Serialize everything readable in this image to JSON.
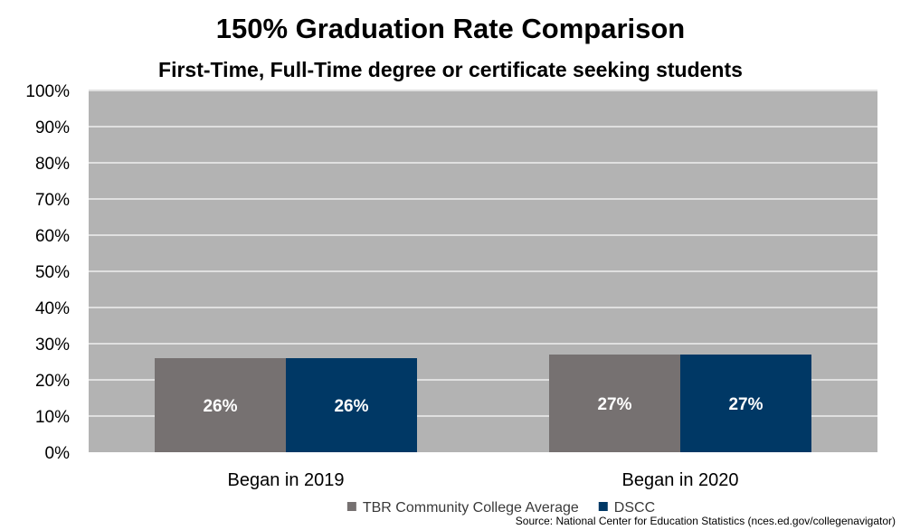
{
  "chart_data": {
    "type": "bar",
    "title": "150% Graduation Rate Comparison",
    "subtitle": "First-Time, Full-Time degree or certificate seeking students",
    "categories": [
      "Began in 2019",
      "Began in 2020"
    ],
    "series": [
      {
        "name": "TBR Community College Average",
        "color": "#767171",
        "values": [
          26,
          27
        ],
        "labels": [
          "26%",
          "27%"
        ]
      },
      {
        "name": "DSCC",
        "color": "#003865",
        "values": [
          26,
          27
        ],
        "labels": [
          "26%",
          "27%"
        ]
      }
    ],
    "ylim": [
      0,
      100
    ],
    "yticks": [
      0,
      10,
      20,
      30,
      40,
      50,
      60,
      70,
      80,
      90,
      100
    ],
    "ytick_labels": [
      "0%",
      "10%",
      "20%",
      "30%",
      "40%",
      "50%",
      "60%",
      "70%",
      "80%",
      "90%",
      "100%"
    ],
    "xlabel": "",
    "ylabel": "",
    "grid": true,
    "plot_background": "#b3b3b3",
    "gridline_color": "#e0e0e0",
    "legend_position": "bottom-center",
    "source": "Source: National Center for Education Statistics (nces.ed.gov/collegenavigator)"
  }
}
